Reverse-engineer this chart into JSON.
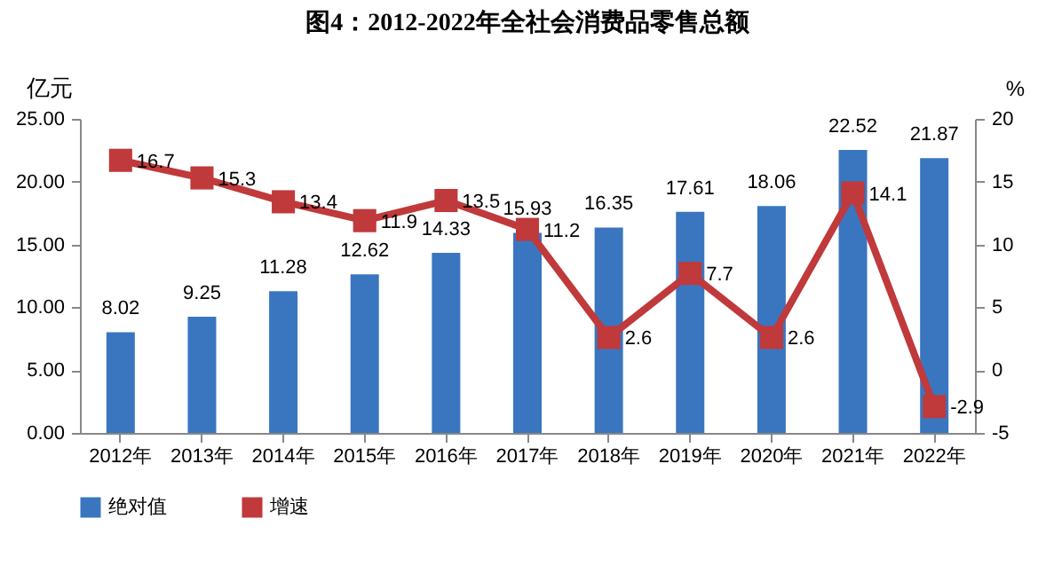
{
  "chart_data": {
    "type": "bar",
    "title": "图4：2012-2022年全社会消费品零售总额",
    "ylabel": "亿元",
    "y2label": "%",
    "categories": [
      "2012年",
      "2013年",
      "2014年",
      "2015年",
      "2016年",
      "2017年",
      "2018年",
      "2019年",
      "2020年",
      "2021年",
      "2022年"
    ],
    "series": [
      {
        "name": "绝对值",
        "color": "#3a76c0",
        "values": [
          8.02,
          9.25,
          11.28,
          12.62,
          14.33,
          15.93,
          16.35,
          17.61,
          18.06,
          22.52,
          21.87
        ]
      },
      {
        "name": "增速",
        "type": "line",
        "axis": "y2",
        "color": "#c0393b",
        "values": [
          16.7,
          15.3,
          13.4,
          11.9,
          13.5,
          11.2,
          2.6,
          7.7,
          2.6,
          14.1,
          -2.9
        ]
      }
    ],
    "ylim": [
      0,
      25
    ],
    "yticks": [
      {
        "value": 0,
        "label": "0.00"
      },
      {
        "value": 5,
        "label": "5.00"
      },
      {
        "value": 10,
        "label": "10.00"
      },
      {
        "value": 15,
        "label": "15.00"
      },
      {
        "value": 20,
        "label": "20.00"
      },
      {
        "value": 25,
        "label": "25.00"
      }
    ],
    "y2lim": [
      -5,
      20
    ],
    "y2ticks": [
      -5,
      0,
      5,
      10,
      15,
      20
    ],
    "data_labels": true,
    "legend": "bottom",
    "marker": "square",
    "line_style": "solid",
    "grid": false
  }
}
